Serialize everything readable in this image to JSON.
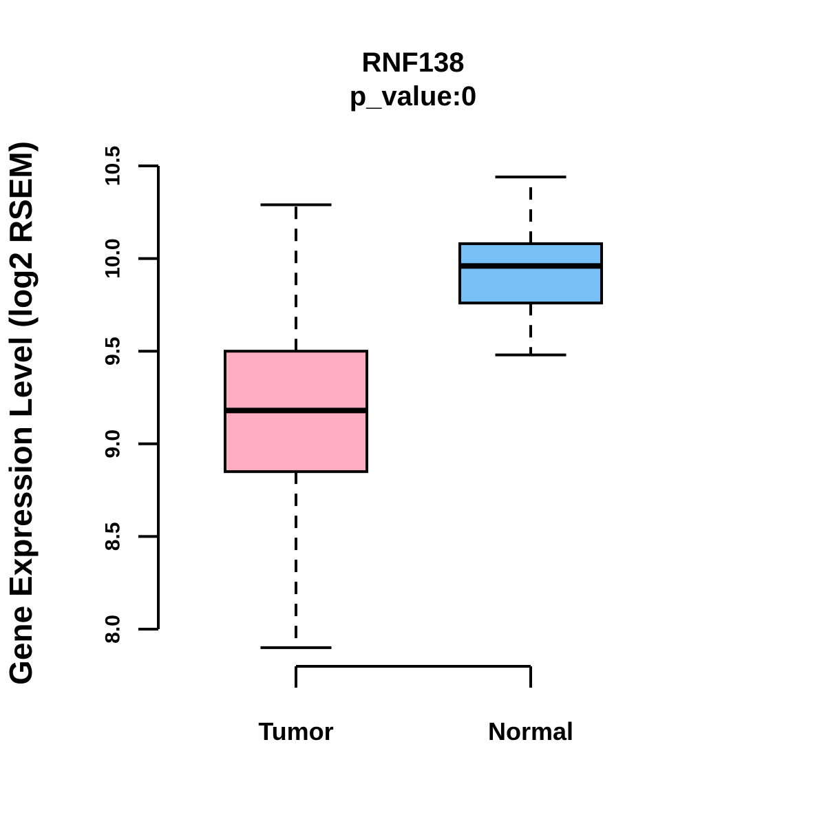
{
  "chart_data": {
    "type": "boxplot",
    "title": "RNF138",
    "subtitle": "p_value:0",
    "ylabel": "Gene Expression Level (log2 RSEM)",
    "xlabel": "",
    "categories": [
      "Tumor",
      "Normal"
    ],
    "series": [
      {
        "name": "Tumor",
        "color": "#FFAEC1",
        "whisker_low": 7.9,
        "q1": 8.85,
        "median": 9.18,
        "q3": 9.5,
        "whisker_high": 10.29
      },
      {
        "name": "Normal",
        "color": "#77C0F5",
        "whisker_low": 9.48,
        "q1": 9.76,
        "median": 9.96,
        "q3": 10.08,
        "whisker_high": 10.44
      }
    ],
    "ylim": [
      8.0,
      10.5
    ],
    "yticks": [
      8.0,
      8.5,
      9.0,
      9.5,
      10.0,
      10.5
    ],
    "ytick_format_decimals": 1,
    "grid": false,
    "legend_position": "none",
    "colors": {
      "stroke": "#000000",
      "median": "#000000",
      "background": "#FFFFFF"
    }
  }
}
